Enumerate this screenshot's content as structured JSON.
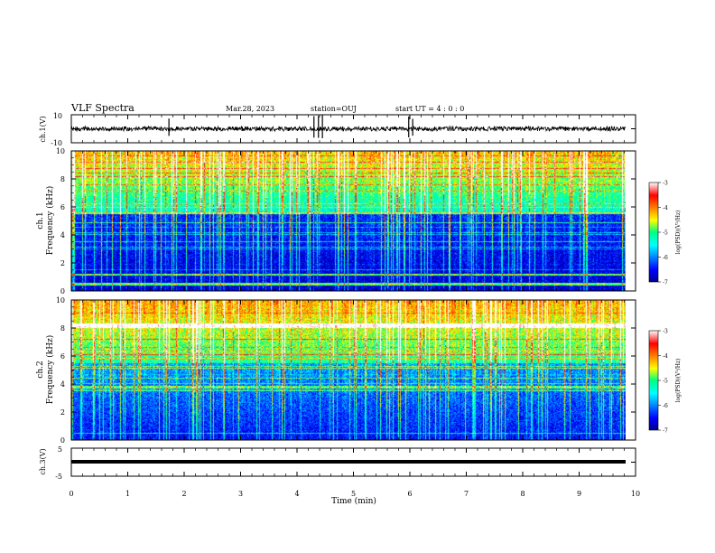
{
  "header": {
    "title": "VLF Spectra",
    "date": "Mar.28, 2023",
    "station": "station=OUJ",
    "start": "start UT =  4 : 0  : 0"
  },
  "chart_data": [
    {
      "type": "line",
      "name": "ch1-waveform",
      "ylabel": "ch.1(V)",
      "ylim": [
        -10,
        10
      ],
      "yticks": [
        "10",
        "-10"
      ],
      "xlim": [
        0,
        10
      ],
      "baseline": 0,
      "trace_color": "#000000"
    },
    {
      "type": "heatmap",
      "name": "ch1-spectrogram",
      "ylabel": "ch.1\nFrequency (kHz)",
      "ylim": [
        0,
        10
      ],
      "yticks": [
        "0",
        "2",
        "4",
        "6",
        "8",
        "10"
      ],
      "xlim": [
        0,
        10
      ],
      "data_end_min": 9.83,
      "colorbar": {
        "label": "log(PSD)(V²/Hz)",
        "range": [
          -7,
          -3
        ],
        "ticks": [
          "-3",
          "-4",
          "-5",
          "-6",
          "-7"
        ]
      }
    },
    {
      "type": "heatmap",
      "name": "ch2-spectrogram",
      "ylabel": "ch.2\nFrequency (kHz)",
      "ylim": [
        0,
        10
      ],
      "yticks": [
        "0",
        "2",
        "4",
        "6",
        "8",
        "10"
      ],
      "xlim": [
        0,
        10
      ],
      "data_end_min": 9.83,
      "colorbar": {
        "label": "log(PSD)(V²/Hz)",
        "range": [
          -7,
          -3
        ],
        "ticks": [
          "-3",
          "-4",
          "-5",
          "-6",
          "-7"
        ]
      }
    },
    {
      "type": "line",
      "name": "ch3-waveform",
      "ylabel": "ch.3(V)",
      "ylim": [
        -5,
        5
      ],
      "yticks": [
        "5",
        "-5"
      ],
      "xlim": [
        0,
        10
      ],
      "baseline": 0,
      "trace_color": "#000000"
    }
  ],
  "xaxis": {
    "label": "Time (min)",
    "ticks": [
      "0",
      "1",
      "2",
      "3",
      "4",
      "5",
      "6",
      "7",
      "8",
      "9",
      "10"
    ]
  }
}
